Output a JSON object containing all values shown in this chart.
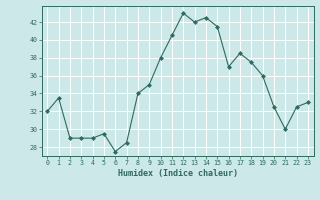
{
  "x": [
    0,
    1,
    2,
    3,
    4,
    5,
    6,
    7,
    8,
    9,
    10,
    11,
    12,
    13,
    14,
    15,
    16,
    17,
    18,
    19,
    20,
    21,
    22,
    23
  ],
  "y": [
    32,
    33.5,
    29,
    29,
    29,
    29.5,
    27.5,
    28.5,
    34,
    35,
    38,
    40.5,
    43,
    42,
    42.5,
    41.5,
    37,
    38.5,
    37.5,
    36,
    32.5,
    30,
    32.5,
    33
  ],
  "title": "",
  "xlabel": "Humidex (Indice chaleur)",
  "ylabel": "",
  "xlim": [
    -0.5,
    23.5
  ],
  "ylim": [
    27,
    43.8
  ],
  "yticks": [
    28,
    30,
    32,
    34,
    36,
    38,
    40,
    42
  ],
  "xticks": [
    0,
    1,
    2,
    3,
    4,
    5,
    6,
    7,
    8,
    9,
    10,
    11,
    12,
    13,
    14,
    15,
    16,
    17,
    18,
    19,
    20,
    21,
    22,
    23
  ],
  "line_color": "#2e6b5e",
  "marker_color": "#2e6b5e",
  "bg_color": "#cce8e8",
  "grid_color": "#ffffff",
  "axis_color": "#2e6b5e",
  "tick_color": "#2e6b5e",
  "label_color": "#2e6b5e"
}
